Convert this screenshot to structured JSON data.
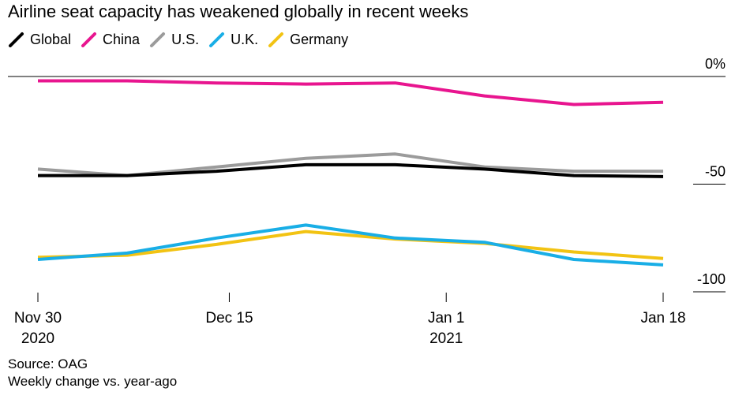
{
  "title": "Airline seat capacity has weakened globally in recent weeks",
  "source": "Source: OAG",
  "note": "Weekly change vs. year-ago",
  "chart_data": {
    "type": "line",
    "title": "Airline seat capacity has weakened globally in recent weeks",
    "x": [
      "2020-11-30",
      "2020-12-07",
      "2020-12-14",
      "2020-12-21",
      "2020-12-28",
      "2021-01-04",
      "2021-01-11",
      "2021-01-18"
    ],
    "x_ticks": [
      {
        "x": "2020-11-30",
        "label": "Nov 30",
        "sublabel": "2020"
      },
      {
        "x": "2020-12-15",
        "label": "Dec 15",
        "sublabel": ""
      },
      {
        "x": "2021-01-01",
        "label": "Jan 1",
        "sublabel": "2021"
      },
      {
        "x": "2021-01-18",
        "label": "Jan 18",
        "sublabel": ""
      }
    ],
    "y_ticks": [
      {
        "value": 0,
        "label": "0%"
      },
      {
        "value": -50,
        "label": "-50"
      },
      {
        "value": -100,
        "label": "-100"
      }
    ],
    "ylim": [
      -100,
      0
    ],
    "xlabel": "",
    "ylabel": "",
    "legend_position": "top-left",
    "grid": false,
    "series": [
      {
        "name": "Global",
        "color": "#000000",
        "values": [
          -46,
          -46,
          -44,
          -41,
          -41,
          -43,
          -46,
          -46.5
        ]
      },
      {
        "name": "China",
        "color": "#e8158f",
        "values": [
          -2,
          -2,
          -3,
          -3.5,
          -3,
          -9,
          -13,
          -12
        ]
      },
      {
        "name": "U.S.",
        "color": "#9b9b9b",
        "values": [
          -43,
          -46,
          -42,
          -38,
          -36,
          -42,
          -44,
          -44
        ]
      },
      {
        "name": "U.K.",
        "color": "#19aee6",
        "values": [
          -85,
          -82,
          -75,
          -69,
          -75,
          -77,
          -85,
          -87.5
        ]
      },
      {
        "name": "Germany",
        "color": "#f2c313",
        "values": [
          -84,
          -83,
          -78,
          -72,
          -75.5,
          -77.5,
          -81.5,
          -84.5
        ]
      }
    ]
  }
}
